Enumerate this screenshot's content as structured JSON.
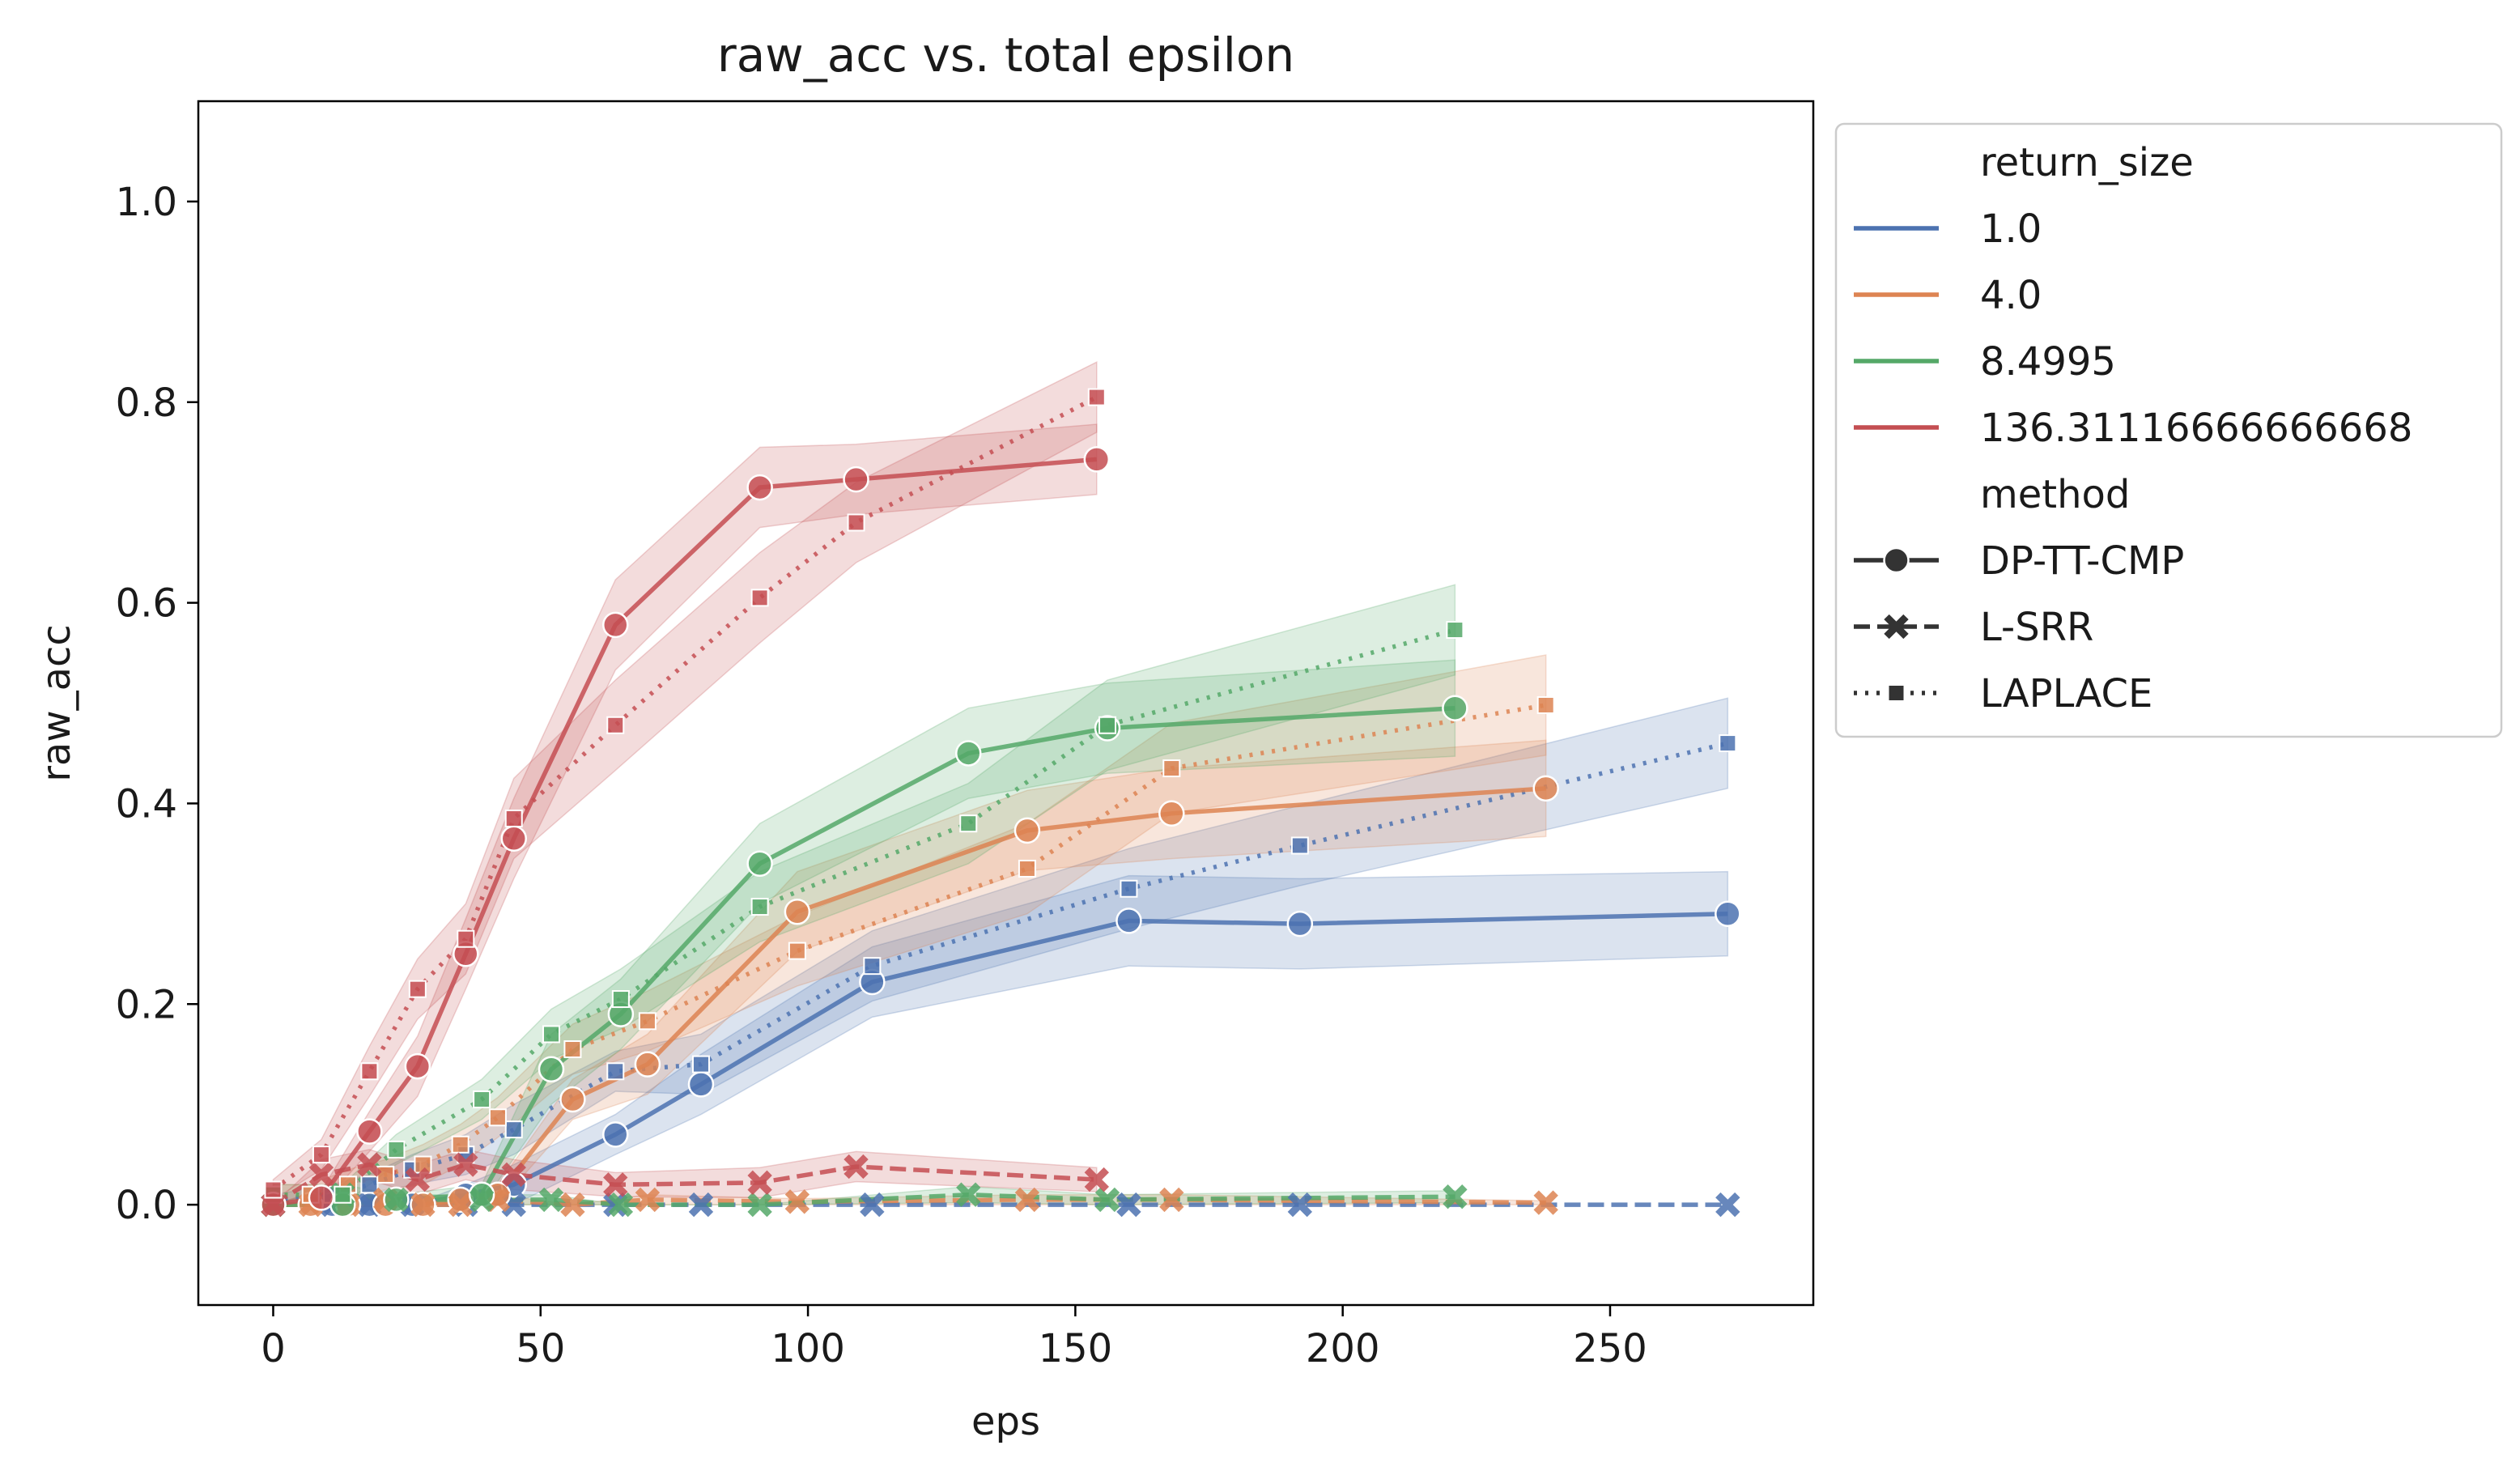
{
  "chart_data": {
    "type": "line",
    "title": "raw_acc vs. total epsilon",
    "xlabel": "eps",
    "ylabel": "raw_acc",
    "xlim": [
      -14,
      288
    ],
    "ylim": [
      -0.1,
      1.1
    ],
    "xticks": [
      0,
      50,
      100,
      150,
      200,
      250
    ],
    "yticks": [
      0.0,
      0.2,
      0.4,
      0.6,
      0.8,
      1.0
    ],
    "xtick_labels": [
      "0",
      "50",
      "100",
      "150",
      "200",
      "250"
    ],
    "ytick_labels": [
      "0.0",
      "0.2",
      "0.4",
      "0.6",
      "0.8",
      "1.0"
    ],
    "grid": false,
    "legend_position": "outside-right-top",
    "legend": {
      "return_size_title": "return_size",
      "method_title": "method",
      "return_sizes": [
        {
          "label": "1.0",
          "color": "#4c72b0"
        },
        {
          "label": "4.0",
          "color": "#dd8452"
        },
        {
          "label": "8.4995",
          "color": "#55a868"
        },
        {
          "label": "136.31116666666668",
          "color": "#c44e52"
        }
      ],
      "methods": [
        {
          "label": "DP-TT-CMP",
          "line": "solid",
          "marker": "circle"
        },
        {
          "label": "L-SRR",
          "line": "dashed",
          "marker": "x"
        },
        {
          "label": "LAPLACE",
          "line": "dotted",
          "marker": "square"
        }
      ]
    },
    "series": [
      {
        "return_size": "1.0",
        "method": "DP-TT-CMP",
        "color": "#4c72b0",
        "x": [
          0,
          11,
          18,
          26,
          36,
          45,
          64,
          80,
          112,
          160,
          192,
          272
        ],
        "y": [
          0.0,
          0.0,
          0.0,
          0.0,
          0.01,
          0.02,
          0.07,
          0.12,
          0.222,
          0.283,
          0.28,
          0.29
        ],
        "band": [
          0.0,
          0.0,
          0.0,
          0.0,
          0.01,
          0.02,
          0.02,
          0.03,
          0.035,
          0.045,
          0.045,
          0.042
        ]
      },
      {
        "return_size": "1.0",
        "method": "L-SRR",
        "color": "#4c72b0",
        "x": [
          0,
          11,
          18,
          26,
          36,
          45,
          64,
          80,
          112,
          160,
          192,
          272
        ],
        "y": [
          0.0,
          0.0,
          0.0,
          0.0,
          0.0,
          0.0,
          0.0,
          0.0,
          0.0,
          0.0,
          0.0,
          0.0
        ],
        "band": [
          0.0,
          0.0,
          0.0,
          0.0,
          0.0,
          0.0,
          0.0,
          0.0,
          0.0,
          0.0,
          0.0,
          0.0
        ]
      },
      {
        "return_size": "1.0",
        "method": "LAPLACE",
        "color": "#4c72b0",
        "x": [
          0,
          11,
          18,
          26,
          36,
          45,
          64,
          80,
          112,
          160,
          192,
          272
        ],
        "y": [
          0.005,
          0.01,
          0.02,
          0.035,
          0.05,
          0.075,
          0.133,
          0.14,
          0.238,
          0.315,
          0.358,
          0.46
        ],
        "band": [
          0.005,
          0.01,
          0.01,
          0.015,
          0.02,
          0.025,
          0.02,
          0.03,
          0.035,
          0.04,
          0.04,
          0.045
        ]
      },
      {
        "return_size": "4.0",
        "method": "DP-TT-CMP",
        "color": "#dd8452",
        "x": [
          0,
          7,
          14,
          21,
          28,
          35,
          42,
          56,
          70,
          98,
          141,
          168,
          238
        ],
        "y": [
          0.0,
          0.0,
          0.0,
          0.0,
          0.0,
          0.005,
          0.01,
          0.105,
          0.14,
          0.292,
          0.373,
          0.39,
          0.415
        ],
        "band": [
          0.0,
          0.0,
          0.0,
          0.0,
          0.0,
          0.005,
          0.01,
          0.02,
          0.03,
          0.04,
          0.04,
          0.045,
          0.048
        ]
      },
      {
        "return_size": "4.0",
        "method": "L-SRR",
        "color": "#dd8452",
        "x": [
          0,
          7,
          14,
          21,
          28,
          35,
          42,
          56,
          70,
          98,
          141,
          168,
          238
        ],
        "y": [
          0.0,
          0.0,
          0.0,
          0.005,
          0.0,
          0.0,
          0.005,
          0.0,
          0.005,
          0.003,
          0.005,
          0.005,
          0.002
        ],
        "band": [
          0.0,
          0.0,
          0.0,
          0.005,
          0.0,
          0.0,
          0.005,
          0.0,
          0.005,
          0.003,
          0.005,
          0.005,
          0.002
        ]
      },
      {
        "return_size": "4.0",
        "method": "LAPLACE",
        "color": "#dd8452",
        "x": [
          0,
          7,
          14,
          21,
          28,
          35,
          42,
          56,
          70,
          98,
          141,
          168,
          238
        ],
        "y": [
          0.01,
          0.01,
          0.02,
          0.03,
          0.04,
          0.06,
          0.087,
          0.155,
          0.183,
          0.253,
          0.335,
          0.435,
          0.498
        ],
        "band": [
          0.01,
          0.01,
          0.015,
          0.015,
          0.02,
          0.02,
          0.02,
          0.025,
          0.03,
          0.035,
          0.045,
          0.045,
          0.05
        ]
      },
      {
        "return_size": "8.4995",
        "method": "DP-TT-CMP",
        "color": "#55a868",
        "x": [
          0,
          13,
          23,
          39,
          52,
          65,
          91,
          130,
          156,
          221
        ],
        "y": [
          0.0,
          0.0,
          0.005,
          0.01,
          0.135,
          0.19,
          0.34,
          0.45,
          0.475,
          0.495
        ],
        "band": [
          0.0,
          0.0,
          0.005,
          0.01,
          0.035,
          0.035,
          0.04,
          0.045,
          0.045,
          0.048
        ]
      },
      {
        "return_size": "8.4995",
        "method": "L-SRR",
        "color": "#55a868",
        "x": [
          0,
          13,
          23,
          39,
          52,
          65,
          91,
          130,
          156,
          221
        ],
        "y": [
          0.0,
          0.01,
          0.005,
          0.005,
          0.005,
          0.0,
          0.0,
          0.01,
          0.005,
          0.008
        ],
        "band": [
          0.0,
          0.01,
          0.005,
          0.005,
          0.005,
          0.0,
          0.0,
          0.008,
          0.005,
          0.006
        ]
      },
      {
        "return_size": "8.4995",
        "method": "LAPLACE",
        "color": "#55a868",
        "x": [
          0,
          13,
          23,
          39,
          52,
          65,
          91,
          130,
          156,
          221
        ],
        "y": [
          0.01,
          0.01,
          0.055,
          0.105,
          0.17,
          0.205,
          0.297,
          0.38,
          0.478,
          0.573
        ],
        "band": [
          0.01,
          0.01,
          0.015,
          0.02,
          0.025,
          0.03,
          0.035,
          0.04,
          0.045,
          0.045
        ]
      },
      {
        "return_size": "136.31116666666668",
        "method": "DP-TT-CMP",
        "color": "#c44e52",
        "x": [
          0,
          9,
          18,
          27,
          36,
          45,
          64,
          91,
          109,
          154
        ],
        "y": [
          0.0,
          0.007,
          0.073,
          0.138,
          0.25,
          0.365,
          0.578,
          0.715,
          0.723,
          0.743
        ],
        "band": [
          0.0,
          0.007,
          0.02,
          0.03,
          0.035,
          0.04,
          0.045,
          0.04,
          0.035,
          0.035
        ]
      },
      {
        "return_size": "136.31116666666668",
        "method": "L-SRR",
        "color": "#c44e52",
        "x": [
          0,
          9,
          18,
          27,
          36,
          45,
          64,
          91,
          109,
          154
        ],
        "y": [
          0.0,
          0.03,
          0.04,
          0.025,
          0.04,
          0.03,
          0.02,
          0.022,
          0.038,
          0.025
        ],
        "band": [
          0.0,
          0.015,
          0.015,
          0.015,
          0.015,
          0.015,
          0.012,
          0.015,
          0.015,
          0.012
        ]
      },
      {
        "return_size": "136.31116666666668",
        "method": "LAPLACE",
        "color": "#c44e52",
        "x": [
          0,
          9,
          18,
          27,
          36,
          45,
          64,
          91,
          109,
          154
        ],
        "y": [
          0.015,
          0.05,
          0.133,
          0.215,
          0.265,
          0.385,
          0.478,
          0.605,
          0.68,
          0.805
        ],
        "band": [
          0.01,
          0.015,
          0.025,
          0.03,
          0.035,
          0.04,
          0.045,
          0.045,
          0.04,
          0.035
        ]
      }
    ]
  }
}
